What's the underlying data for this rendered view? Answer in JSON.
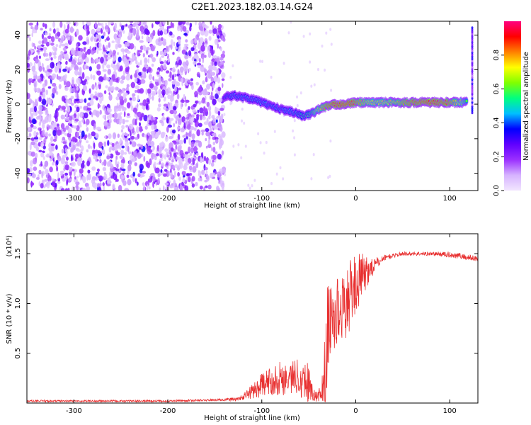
{
  "title": "C2E1.2023.182.03.14.G24",
  "chart_data": [
    {
      "type": "heatmap",
      "xlabel": "Height of straight line (km)",
      "ylabel": "Frequency (Hz)",
      "xlim": [
        -350,
        130
      ],
      "ylim": [
        -50,
        48
      ],
      "x_ticks": [
        -300,
        -200,
        -100,
        0,
        100
      ],
      "x_tick_labels": [
        "-300",
        "-200",
        "-100",
        "0",
        "100"
      ],
      "y_ticks": [
        -40,
        -20,
        0,
        20,
        40
      ],
      "y_tick_labels": [
        "-40",
        "-20",
        "0",
        "20",
        "40"
      ],
      "colorbar": {
        "label": "Normalized spectral amplitude",
        "range": [
          0,
          1
        ],
        "ticks": [
          0,
          0.2,
          0.4,
          0.6,
          0.8
        ],
        "tick_labels": [
          "0.0",
          "0.2",
          "0.4",
          "0.6",
          "0.8"
        ],
        "colormap": [
          "#f2e6ff",
          "#d6b3ff",
          "#9b30ff",
          "#6000ff",
          "#0000ff",
          "#00bfff",
          "#00ff80",
          "#80ff00",
          "#ffff00",
          "#ff8000",
          "#ff0000",
          "#ff0080"
        ]
      },
      "noise_region": {
        "x_range": [
          -350,
          -140
        ],
        "y_range": [
          -50,
          48
        ],
        "amplitude": 0.2
      },
      "ridge": {
        "x": [
          -140,
          -130,
          -120,
          -110,
          -100,
          -90,
          -80,
          -70,
          -60,
          -55,
          -50,
          -45,
          -40,
          -30,
          -20,
          -10,
          0,
          10,
          20,
          40,
          60,
          80,
          100,
          118
        ],
        "frequency": [
          4,
          5,
          4,
          3,
          1,
          -1,
          -3,
          -4,
          -6,
          -7,
          -6,
          -5,
          -3,
          -1,
          0,
          0,
          1,
          1,
          1,
          1,
          1,
          1,
          1,
          1
        ],
        "amplitude": [
          0.4,
          0.45,
          0.45,
          0.45,
          0.45,
          0.45,
          0.45,
          0.45,
          0.5,
          0.55,
          0.55,
          0.6,
          0.7,
          0.85,
          0.9,
          0.9,
          0.85,
          0.75,
          0.7,
          0.75,
          0.85,
          0.9,
          0.85,
          0.6
        ]
      },
      "edge_feature": {
        "x": 124,
        "y_range": [
          -5,
          45
        ]
      }
    },
    {
      "type": "line",
      "xlabel": "Height of straight line (km)",
      "ylabel": "SNR (10 * v/v)",
      "scale_label": "(x10⁴)",
      "xlim": [
        -350,
        130
      ],
      "ylim": [
        0,
        1.7
      ],
      "x_ticks": [
        -300,
        -200,
        -100,
        0,
        100
      ],
      "x_tick_labels": [
        "-300",
        "-200",
        "-100",
        "0",
        "100"
      ],
      "y_ticks": [
        0.5,
        1.0,
        1.5
      ],
      "y_tick_labels": [
        "0.5",
        "1.0",
        "1.5"
      ],
      "series": [
        {
          "color": "#e83030",
          "x": [
            -350,
            -300,
            -250,
            -200,
            -150,
            -125,
            -120,
            -110,
            -100,
            -90,
            -80,
            -70,
            -60,
            -55,
            -50,
            -45,
            -40,
            -35,
            -32,
            -30,
            -25,
            -20,
            -15,
            -10,
            -5,
            0,
            5,
            10,
            15,
            20,
            25,
            30,
            40,
            50,
            60,
            80,
            100,
            110,
            120,
            130
          ],
          "y": [
            0.02,
            0.02,
            0.02,
            0.02,
            0.03,
            0.04,
            0.06,
            0.12,
            0.18,
            0.22,
            0.25,
            0.25,
            0.28,
            0.22,
            0.2,
            0.08,
            0.06,
            0.15,
            0.35,
            0.75,
            0.85,
            0.9,
            0.95,
            1.0,
            1.1,
            1.2,
            1.25,
            1.3,
            1.35,
            1.38,
            1.42,
            1.46,
            1.48,
            1.5,
            1.5,
            1.5,
            1.49,
            1.48,
            1.46,
            1.45
          ],
          "noise_amplitude": [
            0.01,
            0.01,
            0.01,
            0.01,
            0.01,
            0.02,
            0.03,
            0.08,
            0.12,
            0.14,
            0.18,
            0.16,
            0.2,
            0.2,
            0.25,
            0.06,
            0.05,
            0.2,
            0.5,
            0.45,
            0.4,
            0.38,
            0.3,
            0.35,
            0.35,
            0.3,
            0.25,
            0.2,
            0.12,
            0.08,
            0.05,
            0.03,
            0.02,
            0.02,
            0.02,
            0.02,
            0.03,
            0.03,
            0.03,
            0.03
          ]
        }
      ]
    }
  ]
}
